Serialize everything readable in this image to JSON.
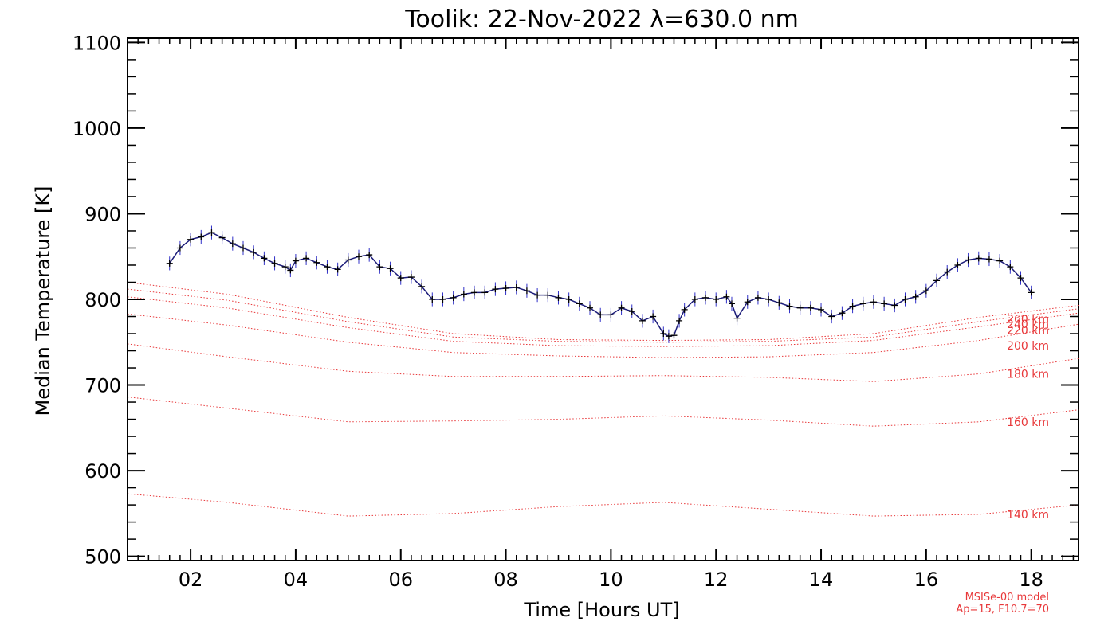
{
  "chart_data": {
    "type": "line",
    "title": "Toolik: 22-Nov-2022 λ=630.0 nm",
    "xlabel": "Time [Hours UT]",
    "ylabel": "Median Temperature [K]",
    "xlim": [
      0.8,
      18.9
    ],
    "ylim": [
      495,
      1105
    ],
    "x_ticks": [
      2,
      4,
      6,
      8,
      10,
      12,
      14,
      16,
      18
    ],
    "x_tick_labels": [
      "02",
      "04",
      "06",
      "08",
      "10",
      "12",
      "14",
      "16",
      "18"
    ],
    "y_ticks": [
      500,
      600,
      700,
      800,
      900,
      1000,
      1100
    ],
    "y_tick_labels": [
      "500",
      "600",
      "700",
      "800",
      "900",
      "1000",
      "1100"
    ],
    "grid": false,
    "legend": "none",
    "measured_series": {
      "color": "#1c1c7a",
      "errorbar_color": "#3030c8",
      "x": [
        1.6,
        1.8,
        2.0,
        2.2,
        2.4,
        2.6,
        2.8,
        3.0,
        3.2,
        3.4,
        3.6,
        3.8,
        3.9,
        4.0,
        4.2,
        4.4,
        4.6,
        4.8,
        5.0,
        5.2,
        5.4,
        5.6,
        5.8,
        6.0,
        6.2,
        6.4,
        6.6,
        6.8,
        7.0,
        7.2,
        7.4,
        7.6,
        7.8,
        8.0,
        8.2,
        8.4,
        8.6,
        8.8,
        9.0,
        9.2,
        9.4,
        9.6,
        9.8,
        10.0,
        10.2,
        10.4,
        10.6,
        10.8,
        11.0,
        11.1,
        11.2,
        11.3,
        11.4,
        11.6,
        11.8,
        12.0,
        12.2,
        12.3,
        12.4,
        12.6,
        12.8,
        13.0,
        13.2,
        13.4,
        13.6,
        13.8,
        14.0,
        14.2,
        14.4,
        14.6,
        14.8,
        15.0,
        15.2,
        15.4,
        15.6,
        15.8,
        16.0,
        16.2,
        16.4,
        16.6,
        16.8,
        17.0,
        17.2,
        17.4,
        17.6,
        17.8,
        18.0
      ],
      "y": [
        842,
        860,
        870,
        873,
        878,
        872,
        865,
        860,
        855,
        848,
        842,
        838,
        834,
        845,
        848,
        843,
        838,
        835,
        846,
        850,
        852,
        838,
        836,
        825,
        826,
        815,
        800,
        800,
        802,
        806,
        808,
        808,
        812,
        813,
        814,
        810,
        805,
        805,
        802,
        800,
        795,
        790,
        782,
        782,
        790,
        786,
        775,
        780,
        760,
        757,
        758,
        775,
        788,
        800,
        802,
        800,
        803,
        795,
        778,
        797,
        802,
        800,
        796,
        792,
        790,
        790,
        788,
        780,
        784,
        792,
        795,
        797,
        795,
        793,
        800,
        803,
        810,
        822,
        832,
        840,
        846,
        848,
        847,
        845,
        838,
        825,
        808
      ],
      "err": 8
    },
    "model_series": [
      {
        "name": "140 km",
        "x": [
          0.8,
          2.7,
          5.0,
          7.0,
          9.0,
          11.0,
          13.0,
          15.0,
          17.0,
          18.9
        ],
        "y": [
          573,
          563,
          547,
          550,
          558,
          563,
          555,
          547,
          549,
          560
        ],
        "label_y": 549
      },
      {
        "name": "160 km",
        "x": [
          0.8,
          2.7,
          5.0,
          7.0,
          9.0,
          11.0,
          13.0,
          15.0,
          17.0,
          18.9
        ],
        "y": [
          686,
          673,
          657,
          658,
          660,
          664,
          659,
          652,
          657,
          671
        ],
        "label_y": 657
      },
      {
        "name": "180 km",
        "x": [
          0.8,
          2.7,
          5.0,
          7.0,
          9.0,
          11.0,
          13.0,
          15.0,
          17.0,
          18.9
        ],
        "y": [
          748,
          733,
          716,
          710,
          710,
          711,
          709,
          704,
          713,
          731
        ],
        "label_y": 713
      },
      {
        "name": "200 km",
        "x": [
          0.8,
          2.7,
          5.0,
          7.0,
          9.0,
          11.0,
          13.0,
          15.0,
          17.0,
          18.9
        ],
        "y": [
          783,
          770,
          750,
          738,
          734,
          732,
          733,
          738,
          752,
          771
        ],
        "label_y": 746
      },
      {
        "name": "220 km",
        "x": [
          0.8,
          2.7,
          5.0,
          7.0,
          9.0,
          11.0,
          13.0,
          15.0,
          17.0,
          18.9
        ],
        "y": [
          803,
          790,
          767,
          751,
          746,
          745,
          746,
          752,
          768,
          784
        ],
        "label_y": 764
      },
      {
        "name": "240 km",
        "x": [
          0.8,
          2.7,
          5.0,
          7.0,
          9.0,
          11.0,
          13.0,
          15.0,
          17.0,
          18.9
        ],
        "y": [
          812,
          799,
          774,
          756,
          751,
          750,
          751,
          756,
          774,
          789
        ],
        "label_y": 771
      },
      {
        "name": "260 km",
        "x": [
          0.8,
          2.7,
          5.0,
          7.0,
          9.0,
          11.0,
          13.0,
          15.0,
          17.0,
          18.9
        ],
        "y": [
          820,
          806,
          779,
          760,
          753,
          752,
          753,
          760,
          779,
          793
        ],
        "label_y": 777
      }
    ],
    "model_color": "#e8383a",
    "model_note_line1": "MSISe-00 model",
    "model_note_line2": "Ap=15, F10.7=70"
  }
}
